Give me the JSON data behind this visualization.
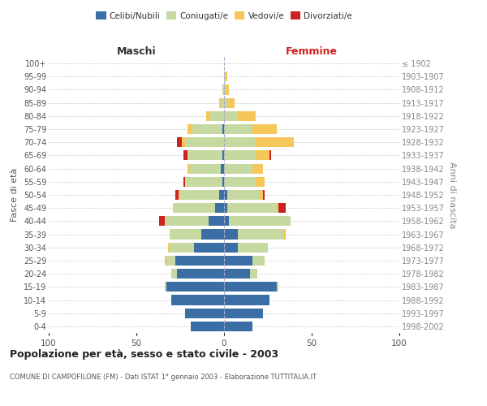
{
  "age_groups": [
    "0-4",
    "5-9",
    "10-14",
    "15-19",
    "20-24",
    "25-29",
    "30-34",
    "35-39",
    "40-44",
    "45-49",
    "50-54",
    "55-59",
    "60-64",
    "65-69",
    "70-74",
    "75-79",
    "80-84",
    "85-89",
    "90-94",
    "95-99",
    "100+"
  ],
  "birth_years": [
    "1998-2002",
    "1993-1997",
    "1988-1992",
    "1983-1987",
    "1978-1982",
    "1973-1977",
    "1968-1972",
    "1963-1967",
    "1958-1962",
    "1953-1957",
    "1948-1952",
    "1943-1947",
    "1938-1942",
    "1933-1937",
    "1928-1932",
    "1923-1927",
    "1918-1922",
    "1913-1917",
    "1908-1912",
    "1903-1907",
    "≤ 1902"
  ],
  "maschi": {
    "celibi": [
      19,
      22,
      30,
      33,
      27,
      28,
      17,
      13,
      9,
      5,
      3,
      1,
      2,
      1,
      0,
      1,
      0,
      0,
      0,
      0,
      0
    ],
    "coniugati": [
      0,
      0,
      0,
      1,
      3,
      5,
      14,
      18,
      25,
      24,
      22,
      21,
      18,
      20,
      22,
      17,
      8,
      2,
      1,
      0,
      0
    ],
    "vedovi": [
      0,
      0,
      0,
      0,
      0,
      1,
      1,
      0,
      0,
      0,
      1,
      0,
      1,
      0,
      2,
      3,
      2,
      1,
      0,
      0,
      0
    ],
    "divorziati": [
      0,
      0,
      0,
      0,
      0,
      0,
      0,
      0,
      3,
      0,
      2,
      1,
      0,
      2,
      3,
      0,
      0,
      0,
      0,
      0,
      0
    ]
  },
  "femmine": {
    "nubili": [
      16,
      22,
      26,
      30,
      15,
      16,
      8,
      8,
      3,
      2,
      2,
      0,
      0,
      0,
      0,
      0,
      0,
      0,
      0,
      0,
      0
    ],
    "coniugate": [
      0,
      0,
      0,
      1,
      4,
      7,
      17,
      26,
      35,
      28,
      18,
      18,
      16,
      18,
      18,
      16,
      8,
      2,
      1,
      1,
      0
    ],
    "vedove": [
      0,
      0,
      0,
      0,
      0,
      0,
      0,
      1,
      0,
      1,
      2,
      5,
      6,
      8,
      22,
      14,
      10,
      4,
      2,
      1,
      0
    ],
    "divorziate": [
      0,
      0,
      0,
      0,
      0,
      0,
      0,
      0,
      0,
      4,
      1,
      0,
      0,
      1,
      0,
      0,
      0,
      0,
      0,
      0,
      0
    ]
  },
  "colors": {
    "celibi": "#3a6ea5",
    "coniugati": "#c5d9a0",
    "vedovi": "#f5c75a",
    "divorziati": "#cc2222"
  },
  "xlim": 100,
  "title": "Popolazione per età, sesso e stato civile - 2003",
  "subtitle": "COMUNE DI CAMPOFILONE (FM) - Dati ISTAT 1° gennaio 2003 - Elaborazione TUTTITALIA.IT",
  "ylabel_left": "Fasce di età",
  "ylabel_right": "Anni di nascita",
  "xlabel_left": "Maschi",
  "xlabel_right": "Femmine"
}
